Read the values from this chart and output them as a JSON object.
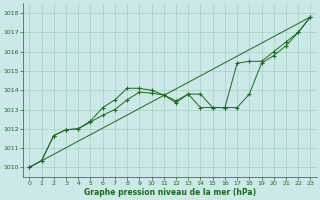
{
  "xlabel": "Graphe pression niveau de la mer (hPa)",
  "bg_color": "#cce8e8",
  "grid_color": "#99ccbb",
  "line_color": "#1a6b1a",
  "ylim": [
    1009.5,
    1018.5
  ],
  "xlim": [
    -0.5,
    23.5
  ],
  "yticks": [
    1010,
    1011,
    1012,
    1013,
    1014,
    1015,
    1016,
    1017,
    1018
  ],
  "xticks": [
    0,
    1,
    2,
    3,
    4,
    5,
    6,
    7,
    8,
    9,
    10,
    11,
    12,
    13,
    14,
    15,
    16,
    17,
    18,
    19,
    20,
    21,
    22,
    23
  ],
  "series1_x": [
    0,
    1,
    2,
    3,
    4,
    5,
    6,
    7,
    8,
    9,
    10,
    11,
    12,
    13,
    14,
    15,
    16,
    17,
    18,
    19,
    20,
    21,
    22,
    23
  ],
  "series1_y": [
    1010.0,
    1010.35,
    1011.65,
    1011.95,
    1012.0,
    1012.35,
    1012.7,
    1013.0,
    1013.5,
    1013.9,
    1013.85,
    1013.75,
    1013.45,
    1013.8,
    1013.8,
    1013.1,
    1013.1,
    1013.1,
    1013.8,
    1015.4,
    1015.8,
    1016.3,
    1017.0,
    1017.8
  ],
  "series2_x": [
    0,
    1,
    2,
    3,
    4,
    5,
    6,
    7,
    8,
    9,
    10,
    11,
    12,
    13,
    14,
    15,
    16,
    17,
    18,
    19,
    20,
    21,
    22,
    23
  ],
  "series2_y": [
    1010.0,
    1010.35,
    1011.65,
    1011.95,
    1012.0,
    1012.4,
    1013.1,
    1013.5,
    1014.1,
    1014.1,
    1014.0,
    1013.75,
    1013.35,
    1013.8,
    1013.1,
    1013.1,
    1013.1,
    1015.4,
    1015.5,
    1015.5,
    1016.0,
    1016.5,
    1017.0,
    1017.8
  ],
  "series3_x": [
    0,
    23
  ],
  "series3_y": [
    1010.0,
    1017.8
  ],
  "figsize": [
    3.2,
    2.0
  ],
  "dpi": 100
}
